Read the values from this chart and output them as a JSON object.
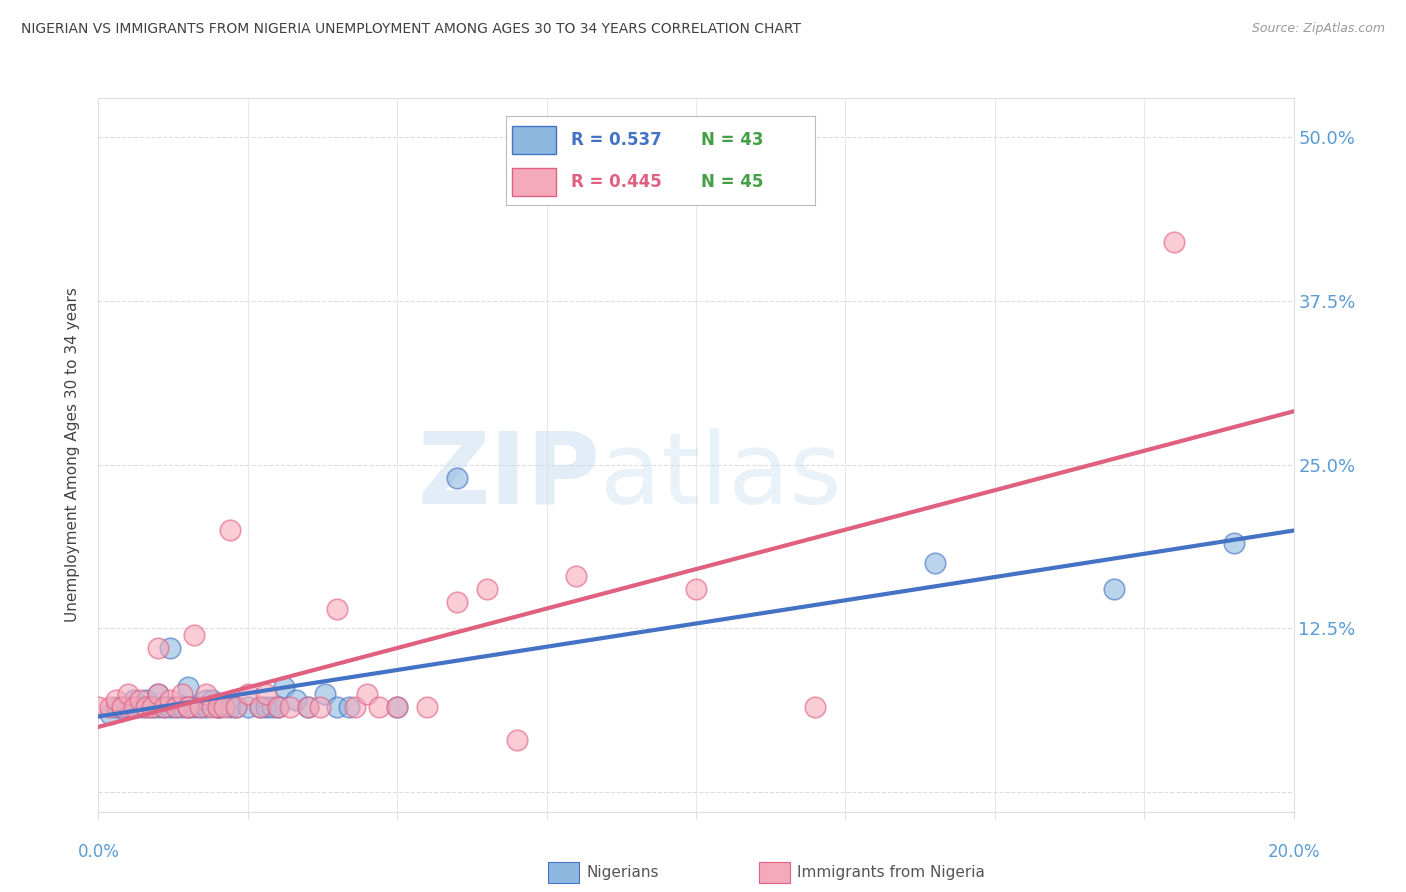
{
  "title": "NIGERIAN VS IMMIGRANTS FROM NIGERIA UNEMPLOYMENT AMONG AGES 30 TO 34 YEARS CORRELATION CHART",
  "source": "Source: ZipAtlas.com",
  "ylabel": "Unemployment Among Ages 30 to 34 years",
  "ytick_values": [
    0.0,
    0.125,
    0.25,
    0.375,
    0.5
  ],
  "ytick_labels": [
    "",
    "12.5%",
    "25.0%",
    "37.5%",
    "50.0%"
  ],
  "xlim": [
    0.0,
    0.2
  ],
  "ylim": [
    -0.015,
    0.53
  ],
  "legend_blue_r": "R = 0.537",
  "legend_blue_n": "N = 43",
  "legend_pink_r": "R = 0.445",
  "legend_pink_n": "N = 45",
  "legend_blue_label": "Nigerians",
  "legend_pink_label": "Immigrants from Nigeria",
  "blue_color": "#8DB8E0",
  "pink_color": "#F5AABB",
  "blue_line_color": "#4472C4",
  "pink_line_color": "#E06080",
  "title_color": "#404040",
  "source_color": "#999999",
  "right_tick_color": "#5B9BD5",
  "grid_color": "#DDDDDD",
  "blue_scatter_x": [
    0.002,
    0.003,
    0.004,
    0.005,
    0.006,
    0.007,
    0.008,
    0.008,
    0.009,
    0.01,
    0.01,
    0.011,
    0.012,
    0.012,
    0.013,
    0.014,
    0.015,
    0.015,
    0.016,
    0.017,
    0.018,
    0.018,
    0.019,
    0.02,
    0.02,
    0.022,
    0.023,
    0.025,
    0.027,
    0.028,
    0.029,
    0.03,
    0.031,
    0.033,
    0.035,
    0.038,
    0.04,
    0.042,
    0.05,
    0.06,
    0.14,
    0.17,
    0.19
  ],
  "blue_scatter_y": [
    0.06,
    0.065,
    0.065,
    0.065,
    0.07,
    0.065,
    0.065,
    0.07,
    0.065,
    0.065,
    0.075,
    0.065,
    0.065,
    0.11,
    0.065,
    0.065,
    0.065,
    0.08,
    0.065,
    0.065,
    0.065,
    0.07,
    0.07,
    0.065,
    0.065,
    0.065,
    0.065,
    0.065,
    0.065,
    0.065,
    0.065,
    0.065,
    0.08,
    0.07,
    0.065,
    0.075,
    0.065,
    0.065,
    0.065,
    0.24,
    0.175,
    0.155,
    0.19
  ],
  "pink_scatter_x": [
    0.0,
    0.002,
    0.003,
    0.004,
    0.005,
    0.006,
    0.007,
    0.008,
    0.009,
    0.01,
    0.01,
    0.011,
    0.012,
    0.013,
    0.014,
    0.015,
    0.015,
    0.016,
    0.017,
    0.018,
    0.019,
    0.02,
    0.021,
    0.022,
    0.023,
    0.025,
    0.027,
    0.028,
    0.03,
    0.032,
    0.035,
    0.037,
    0.04,
    0.043,
    0.045,
    0.047,
    0.05,
    0.055,
    0.06,
    0.065,
    0.07,
    0.08,
    0.1,
    0.12,
    0.18
  ],
  "pink_scatter_y": [
    0.065,
    0.065,
    0.07,
    0.065,
    0.075,
    0.065,
    0.07,
    0.065,
    0.065,
    0.075,
    0.11,
    0.065,
    0.07,
    0.065,
    0.075,
    0.065,
    0.065,
    0.12,
    0.065,
    0.075,
    0.065,
    0.065,
    0.065,
    0.2,
    0.065,
    0.075,
    0.065,
    0.075,
    0.065,
    0.065,
    0.065,
    0.065,
    0.14,
    0.065,
    0.075,
    0.065,
    0.065,
    0.065,
    0.145,
    0.155,
    0.04,
    0.165,
    0.155,
    0.065,
    0.42
  ]
}
